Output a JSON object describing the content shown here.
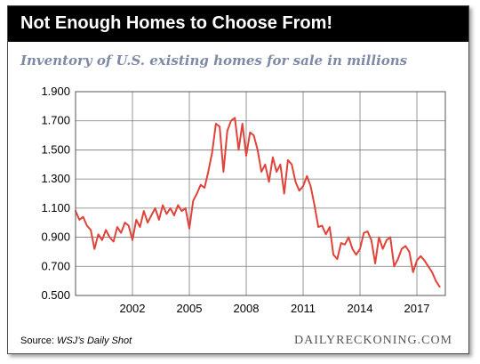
{
  "header": {
    "title": "Not Enough Homes to Choose From!",
    "subtitle": "Inventory of U.S. existing homes for sale in millions"
  },
  "footer": {
    "source_prefix": "Source: ",
    "source_name": "WSJ’s Daily Shot",
    "brand": "DAILYRECKONING.COM"
  },
  "colors": {
    "line": "#e0433a",
    "grid": "#7a7a7a",
    "title_bg": "#000000",
    "subtitle": "#7f8aa6"
  },
  "chart_data": {
    "type": "line",
    "title": "Not Enough Homes to Choose From!",
    "subtitle": "Inventory of U.S. existing homes for sale in millions",
    "xlabel": "",
    "ylabel": "",
    "xlim": [
      1999.0,
      2018.5
    ],
    "ylim": [
      0.5,
      1.9
    ],
    "x_ticks": [
      2002,
      2005,
      2008,
      2011,
      2014,
      2017
    ],
    "y_ticks": [
      0.5,
      0.7,
      0.9,
      1.1,
      1.3,
      1.5,
      1.7,
      1.9
    ],
    "y_tick_labels": [
      "0.500",
      "0.700",
      "0.900",
      "1.100",
      "1.300",
      "1.500",
      "1.700",
      "1.900"
    ],
    "grid": true,
    "series": [
      {
        "name": "",
        "x": [
          1999.0,
          1999.2,
          1999.4,
          1999.6,
          1999.8,
          2000.0,
          2000.2,
          2000.4,
          2000.6,
          2000.8,
          2001.0,
          2001.2,
          2001.4,
          2001.6,
          2001.8,
          2002.0,
          2002.2,
          2002.4,
          2002.6,
          2002.8,
          2003.0,
          2003.2,
          2003.4,
          2003.6,
          2003.8,
          2004.0,
          2004.2,
          2004.4,
          2004.6,
          2004.8,
          2005.0,
          2005.2,
          2005.4,
          2005.6,
          2005.8,
          2006.0,
          2006.2,
          2006.4,
          2006.6,
          2006.8,
          2007.0,
          2007.2,
          2007.4,
          2007.6,
          2007.8,
          2008.0,
          2008.2,
          2008.4,
          2008.6,
          2008.8,
          2009.0,
          2009.2,
          2009.4,
          2009.6,
          2009.8,
          2010.0,
          2010.2,
          2010.4,
          2010.6,
          2010.8,
          2011.0,
          2011.2,
          2011.4,
          2011.6,
          2011.8,
          2012.0,
          2012.2,
          2012.4,
          2012.6,
          2012.8,
          2013.0,
          2013.2,
          2013.4,
          2013.6,
          2013.8,
          2014.0,
          2014.2,
          2014.4,
          2014.6,
          2014.8,
          2015.0,
          2015.2,
          2015.4,
          2015.6,
          2015.8,
          2016.0,
          2016.2,
          2016.4,
          2016.6,
          2016.8,
          2017.0,
          2017.2,
          2017.4,
          2017.6,
          2017.8,
          2018.0,
          2018.2
        ],
        "values": [
          1.08,
          1.02,
          1.04,
          0.98,
          0.95,
          0.82,
          0.92,
          0.88,
          0.95,
          0.9,
          0.87,
          0.97,
          0.93,
          1.0,
          0.98,
          0.88,
          1.02,
          0.97,
          1.08,
          1.0,
          1.05,
          1.1,
          1.02,
          1.12,
          1.06,
          1.1,
          1.05,
          1.12,
          1.08,
          1.1,
          0.96,
          1.15,
          1.2,
          1.26,
          1.24,
          1.35,
          1.48,
          1.68,
          1.66,
          1.35,
          1.63,
          1.7,
          1.72,
          1.5,
          1.68,
          1.46,
          1.62,
          1.6,
          1.5,
          1.35,
          1.4,
          1.28,
          1.45,
          1.35,
          1.4,
          1.2,
          1.43,
          1.4,
          1.28,
          1.22,
          1.25,
          1.32,
          1.25,
          1.12,
          0.97,
          0.98,
          0.92,
          0.97,
          0.78,
          0.75,
          0.86,
          0.85,
          0.9,
          0.82,
          0.78,
          0.82,
          0.93,
          0.94,
          0.88,
          0.72,
          0.9,
          0.82,
          0.88,
          0.9,
          0.7,
          0.75,
          0.82,
          0.84,
          0.8,
          0.66,
          0.74,
          0.77,
          0.74,
          0.7,
          0.66,
          0.6,
          0.56
        ]
      }
    ]
  }
}
